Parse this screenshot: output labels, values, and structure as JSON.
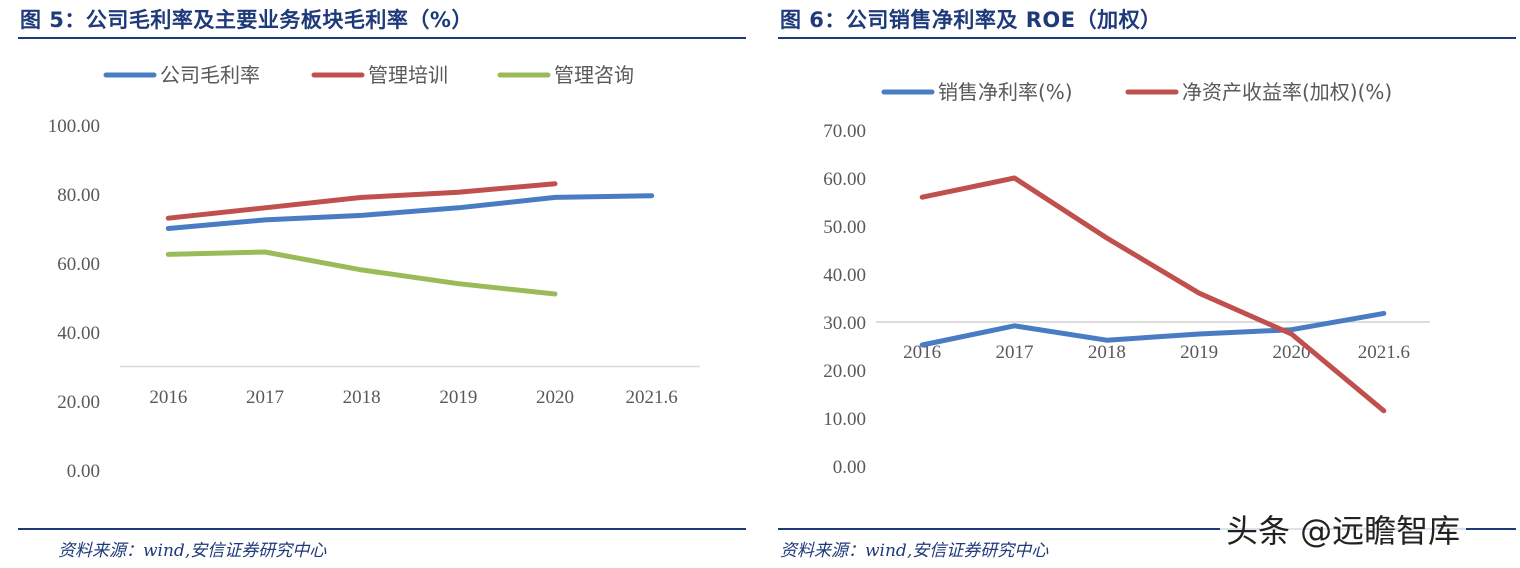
{
  "watermark": "头条 @远瞻智库",
  "colors": {
    "blue": "#4a7cc4",
    "red": "#c0504d",
    "green": "#9bbb59",
    "title": "#1f3a7a",
    "axis": "#595959",
    "gridline": "#d9d9d9"
  },
  "chart_data": [
    {
      "type": "line",
      "title": "图 5：公司毛利率及主要业务板块毛利率（%）",
      "source": "资料来源：wind,安信证券研究中心",
      "categories": [
        "2016",
        "2017",
        "2018",
        "2019",
        "2020",
        "2021.6"
      ],
      "ylim": [
        0,
        100
      ],
      "yticks": [
        "100.00",
        "80.00",
        "60.00",
        "40.00",
        "20.00",
        "0.00"
      ],
      "ytick_values": [
        100,
        80,
        60,
        40,
        20,
        0
      ],
      "xaxis_at": 30,
      "legend_position": "top-left",
      "series": [
        {
          "name": "公司毛利率",
          "color": "#4a7cc4",
          "values": [
            70,
            72.5,
            73.8,
            76,
            79,
            79.5
          ]
        },
        {
          "name": "管理培训",
          "color": "#c0504d",
          "values": [
            73,
            76,
            79,
            80.5,
            83,
            null
          ]
        },
        {
          "name": "管理咨询",
          "color": "#9bbb59",
          "values": [
            62.5,
            63.2,
            58,
            54,
            51,
            null
          ]
        }
      ]
    },
    {
      "type": "line",
      "title": "图 6：公司销售净利率及 ROE（加权）",
      "source": "资料来源：wind,安信证券研究中心",
      "categories": [
        "2016",
        "2017",
        "2018",
        "2019",
        "2020",
        "2021.6"
      ],
      "ylim": [
        0,
        70
      ],
      "yticks": [
        "70.00",
        "60.00",
        "50.00",
        "40.00",
        "30.00",
        "20.00",
        "10.00",
        "0.00"
      ],
      "ytick_values": [
        70,
        60,
        50,
        40,
        30,
        20,
        10,
        0
      ],
      "xaxis_at": 30,
      "legend_position": "top",
      "series": [
        {
          "name": "销售净利率(%)",
          "color": "#4a7cc4",
          "values": [
            25.2,
            29.2,
            26.2,
            27.5,
            28.4,
            31.8
          ]
        },
        {
          "name": "净资产收益率(加权)(%)",
          "color": "#c0504d",
          "values": [
            56,
            60,
            47.5,
            36,
            27.5,
            11.5
          ]
        }
      ]
    }
  ]
}
